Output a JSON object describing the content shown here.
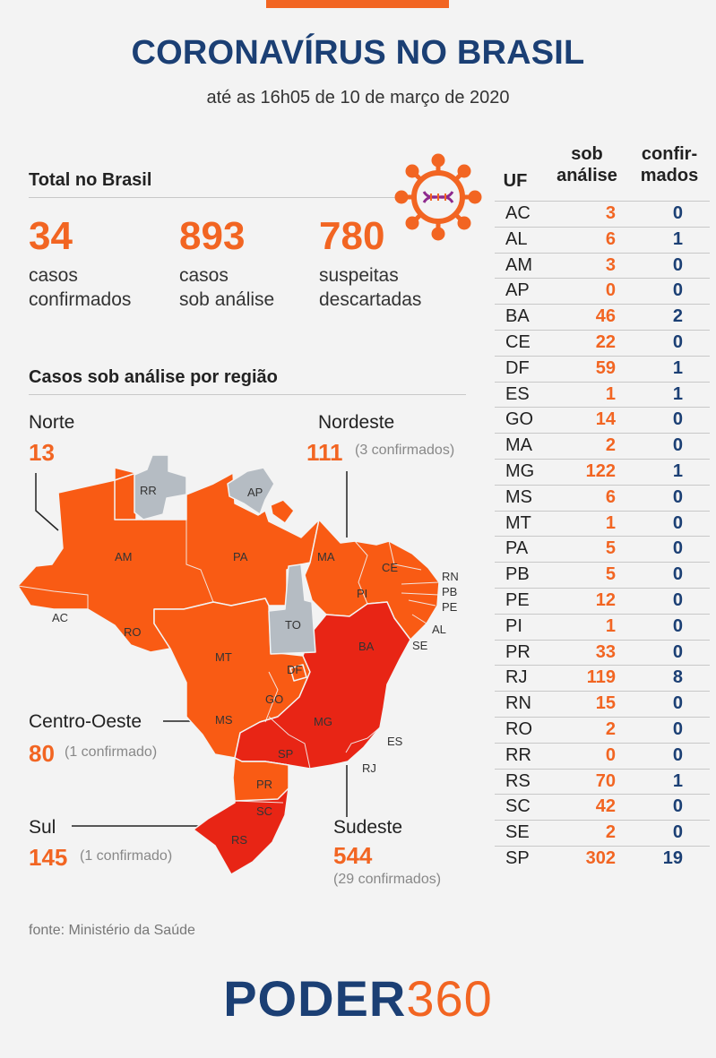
{
  "header": {
    "title": "CORONAVÍRUS NO BRASIL",
    "subtitle": "até as 16h05 de 10 de março de 2020"
  },
  "colors": {
    "orange": "#f26522",
    "navy": "#1b3f74",
    "map_orange": "#f95b14",
    "map_red": "#e82515",
    "map_gray": "#b5bcc3"
  },
  "total": {
    "title": "Total no Brasil",
    "stats": [
      {
        "value": "34",
        "line1": "casos",
        "line2": "confirmados"
      },
      {
        "value": "893",
        "line1": "casos",
        "line2": "sob análise"
      },
      {
        "value": "780",
        "line1": "suspeitas",
        "line2": "descartadas"
      }
    ],
    "icon": "virus-icon"
  },
  "regions": {
    "title": "Casos sob análise por região",
    "norte": {
      "name": "Norte",
      "value": "13",
      "note": ""
    },
    "nordeste": {
      "name": "Nordeste",
      "value": "111",
      "note": "(3 confirmados)"
    },
    "centro_oeste": {
      "name": "Centro-Oeste",
      "value": "80",
      "note": "(1 confirmado)"
    },
    "sul": {
      "name": "Sul",
      "value": "145",
      "note": "(1 confirmado)"
    },
    "sudeste": {
      "name": "Sudeste",
      "value": "544",
      "note": "(29 confirmados)"
    }
  },
  "map_labels": [
    "RR",
    "AP",
    "AM",
    "PA",
    "MA",
    "CE",
    "RN",
    "PB",
    "PE",
    "AL",
    "SE",
    "PI",
    "TO",
    "BA",
    "AC",
    "RO",
    "MT",
    "DF",
    "GO",
    "MG",
    "ES",
    "RJ",
    "SP",
    "MS",
    "PR",
    "SC",
    "RS"
  ],
  "table": {
    "headers": {
      "uf": "UF",
      "sob1": "sob",
      "sob2": "análise",
      "conf1": "confir-",
      "conf2": "mados"
    },
    "rows": [
      {
        "uf": "AC",
        "sob": "3",
        "conf": "0"
      },
      {
        "uf": "AL",
        "sob": "6",
        "conf": "1"
      },
      {
        "uf": "AM",
        "sob": "3",
        "conf": "0"
      },
      {
        "uf": "AP",
        "sob": "0",
        "conf": "0"
      },
      {
        "uf": "BA",
        "sob": "46",
        "conf": "2"
      },
      {
        "uf": "CE",
        "sob": "22",
        "conf": "0"
      },
      {
        "uf": "DF",
        "sob": "59",
        "conf": "1"
      },
      {
        "uf": "ES",
        "sob": "1",
        "conf": "1"
      },
      {
        "uf": "GO",
        "sob": "14",
        "conf": "0"
      },
      {
        "uf": "MA",
        "sob": "2",
        "conf": "0"
      },
      {
        "uf": "MG",
        "sob": "122",
        "conf": "1"
      },
      {
        "uf": "MS",
        "sob": "6",
        "conf": "0"
      },
      {
        "uf": "MT",
        "sob": "1",
        "conf": "0"
      },
      {
        "uf": "PA",
        "sob": "5",
        "conf": "0"
      },
      {
        "uf": "PB",
        "sob": "5",
        "conf": "0"
      },
      {
        "uf": "PE",
        "sob": "12",
        "conf": "0"
      },
      {
        "uf": "PI",
        "sob": "1",
        "conf": "0"
      },
      {
        "uf": "PR",
        "sob": "33",
        "conf": "0"
      },
      {
        "uf": "RJ",
        "sob": "119",
        "conf": "8"
      },
      {
        "uf": "RN",
        "sob": "15",
        "conf": "0"
      },
      {
        "uf": "RO",
        "sob": "2",
        "conf": "0"
      },
      {
        "uf": "RR",
        "sob": "0",
        "conf": "0"
      },
      {
        "uf": "RS",
        "sob": "70",
        "conf": "1"
      },
      {
        "uf": "SC",
        "sob": "42",
        "conf": "0"
      },
      {
        "uf": "SE",
        "sob": "2",
        "conf": "0"
      },
      {
        "uf": "SP",
        "sob": "302",
        "conf": "19"
      }
    ]
  },
  "footer": {
    "source": "fonte: Ministério da Saúde",
    "logo_part1": "PODER",
    "logo_part2": "360"
  }
}
